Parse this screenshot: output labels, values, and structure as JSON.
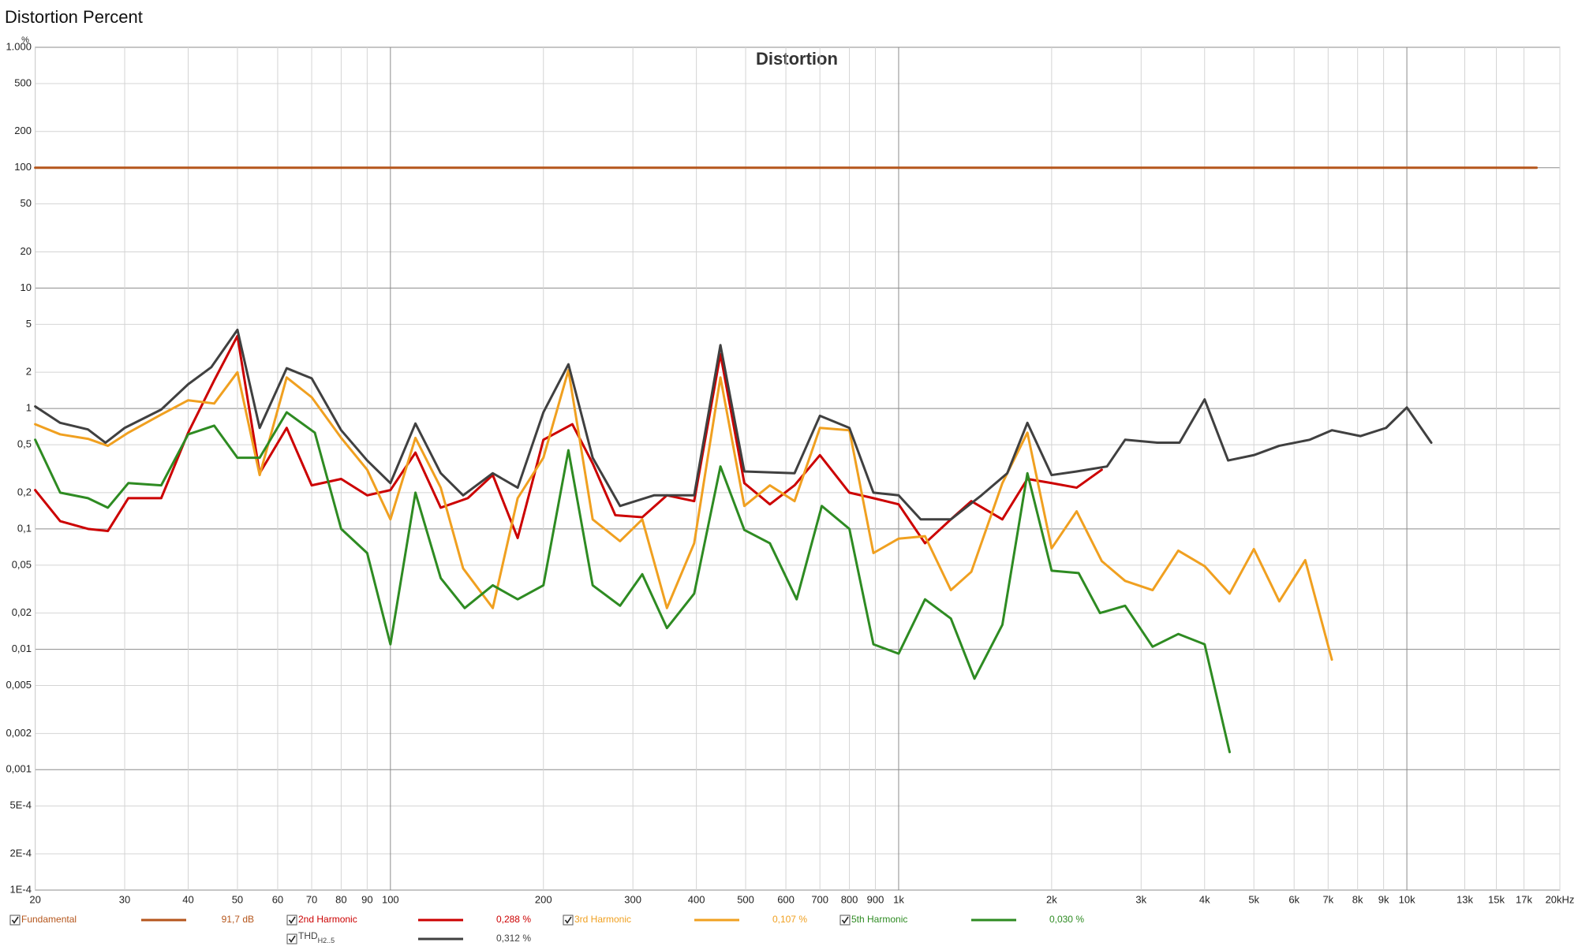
{
  "chart_data": {
    "type": "line",
    "window_title": "Distortion Percent",
    "title": "Distortion",
    "y_unit": "%",
    "log_x": true,
    "log_y": true,
    "grid": true,
    "xlim": [
      20,
      20000
    ],
    "ylim": [
      0.0001,
      1000
    ],
    "xticks": [
      20,
      30,
      40,
      50,
      60,
      70,
      80,
      90,
      100,
      200,
      300,
      400,
      500,
      600,
      700,
      800,
      900,
      {
        "value": 1000,
        "label": "1k"
      },
      {
        "value": 2000,
        "label": "2k"
      },
      {
        "value": 3000,
        "label": "3k"
      },
      {
        "value": 4000,
        "label": "4k"
      },
      {
        "value": 5000,
        "label": "5k"
      },
      {
        "value": 6000,
        "label": "6k"
      },
      {
        "value": 7000,
        "label": "7k"
      },
      {
        "value": 8000,
        "label": "8k"
      },
      {
        "value": 9000,
        "label": "9k"
      },
      {
        "value": 10000,
        "label": "10k"
      },
      {
        "value": 13000,
        "label": "13k"
      },
      {
        "value": 15000,
        "label": "15k"
      },
      {
        "value": 17000,
        "label": "17k"
      },
      {
        "value": 20000,
        "label": "20kHz"
      }
    ],
    "yticks": [
      {
        "value": 1000,
        "label": "1.000"
      },
      500,
      200,
      100,
      50,
      20,
      10,
      5,
      2,
      1,
      {
        "value": 0.5,
        "label": "0,5"
      },
      {
        "value": 0.2,
        "label": "0,2"
      },
      {
        "value": 0.1,
        "label": "0,1"
      },
      {
        "value": 0.05,
        "label": "0,05"
      },
      {
        "value": 0.02,
        "label": "0,02"
      },
      {
        "value": 0.01,
        "label": "0,01"
      },
      {
        "value": 0.005,
        "label": "0,005"
      },
      {
        "value": 0.002,
        "label": "0,002"
      },
      {
        "value": 0.001,
        "label": "0,001"
      },
      {
        "value": 0.0005,
        "label": "5E-4"
      },
      {
        "value": 0.0002,
        "label": "2E-4"
      },
      {
        "value": 0.0001,
        "label": "1E-4"
      }
    ],
    "series": [
      {
        "name": "Fundamental",
        "color": "#b5561c",
        "legend_value": "91,7 dB",
        "x": [
          20,
          18000
        ],
        "values": [
          100,
          100
        ]
      },
      {
        "name": "2nd Harmonic",
        "color": "#cc0000",
        "legend_value": "0,288 %",
        "x": [
          20,
          22.4,
          25.4,
          27.8,
          30.5,
          35.4,
          40,
          45,
          50,
          55.3,
          62.5,
          70,
          80,
          90,
          100,
          112,
          125.6,
          142,
          159,
          178,
          200,
          228,
          250,
          277,
          313,
          350,
          396,
          446,
          497,
          558,
          624,
          700,
          800,
          892,
          1000,
          1127,
          1267,
          1390,
          1600,
          1792,
          2000,
          2240,
          2510
        ],
        "values": [
          0.21,
          0.116,
          0.1,
          0.096,
          0.18,
          0.18,
          0.63,
          1.71,
          4.0,
          0.29,
          0.69,
          0.23,
          0.26,
          0.19,
          0.21,
          0.43,
          0.15,
          0.18,
          0.28,
          0.084,
          0.55,
          0.74,
          0.35,
          0.13,
          0.125,
          0.19,
          0.17,
          2.83,
          0.24,
          0.16,
          0.23,
          0.41,
          0.2,
          0.18,
          0.16,
          0.076,
          0.12,
          0.17,
          0.12,
          0.26,
          0.24,
          0.22,
          0.31
        ]
      },
      {
        "name": "3rd Harmonic",
        "color": "#f0a020",
        "legend_value": "0,107 %",
        "x": [
          20,
          22.4,
          25.4,
          27.8,
          30.5,
          35.4,
          40,
          45,
          50,
          55.3,
          62.5,
          70,
          80,
          90,
          100,
          112,
          125.6,
          139,
          159,
          178,
          200,
          224,
          250,
          283,
          313,
          350,
          396,
          446,
          497,
          558,
          624,
          700,
          800,
          892,
          1000,
          1127,
          1267,
          1390,
          1600,
          1792,
          2000,
          2240,
          2510,
          2790,
          3160,
          3550,
          4000,
          4480,
          5000,
          5610,
          6310,
          7120
        ],
        "values": [
          0.74,
          0.61,
          0.56,
          0.49,
          0.63,
          0.89,
          1.17,
          1.1,
          2.0,
          0.28,
          1.81,
          1.24,
          0.57,
          0.31,
          0.12,
          0.57,
          0.22,
          0.047,
          0.022,
          0.18,
          0.39,
          2.08,
          0.12,
          0.079,
          0.12,
          0.022,
          0.076,
          1.81,
          0.155,
          0.23,
          0.17,
          0.69,
          0.66,
          0.063,
          0.083,
          0.087,
          0.031,
          0.044,
          0.24,
          0.63,
          0.069,
          0.14,
          0.054,
          0.037,
          0.031,
          0.066,
          0.049,
          0.029,
          0.068,
          0.025,
          0.055,
          0.0082
        ]
      },
      {
        "name": "5th Harmonic",
        "color": "#2e8b22",
        "legend_value": "0,030 %",
        "x": [
          20,
          22.4,
          25.4,
          27.8,
          30.5,
          35.4,
          40,
          45,
          50,
          55.3,
          62.5,
          71,
          80,
          90,
          100,
          112,
          125.6,
          140,
          159,
          178,
          200,
          224,
          250,
          283,
          313,
          350,
          396,
          446,
          497,
          558,
          630,
          706,
          800,
          892,
          1000,
          1127,
          1267,
          1410,
          1600,
          1792,
          2000,
          2260,
          2490,
          2790,
          3160,
          3550,
          4000,
          4480
        ],
        "values": [
          0.55,
          0.2,
          0.18,
          0.15,
          0.24,
          0.23,
          0.61,
          0.72,
          0.39,
          0.39,
          0.93,
          0.63,
          0.1,
          0.063,
          0.011,
          0.2,
          0.039,
          0.022,
          0.034,
          0.026,
          0.034,
          0.45,
          0.034,
          0.023,
          0.042,
          0.015,
          0.029,
          0.33,
          0.098,
          0.076,
          0.026,
          0.155,
          0.1,
          0.011,
          0.0092,
          0.026,
          0.018,
          0.0057,
          0.016,
          0.29,
          0.045,
          0.043,
          0.02,
          0.023,
          0.0105,
          0.0134,
          0.011,
          0.0014
        ]
      },
      {
        "name": "THD",
        "name_subscript": "H2..5",
        "color": "#404040",
        "legend_value": "0,312 %",
        "x": [
          20,
          22.4,
          25.4,
          27.5,
          30,
          35.4,
          40,
          44.4,
          50,
          55.3,
          62.5,
          70,
          80,
          90,
          100,
          112,
          125.6,
          139,
          159,
          178,
          200,
          224,
          250,
          283,
          330,
          396,
          446,
          497,
          624,
          700,
          800,
          892,
          1000,
          1105,
          1267,
          1455,
          1636,
          1792,
          2000,
          2240,
          2570,
          2790,
          3230,
          3570,
          4000,
          4450,
          5000,
          5610,
          6440,
          7120,
          8100,
          9100,
          10000,
          11170
        ],
        "values": [
          1.04,
          0.76,
          0.67,
          0.52,
          0.69,
          0.98,
          1.59,
          2.2,
          4.5,
          0.69,
          2.16,
          1.78,
          0.66,
          0.37,
          0.24,
          0.75,
          0.29,
          0.19,
          0.29,
          0.22,
          0.93,
          2.33,
          0.39,
          0.155,
          0.19,
          0.19,
          3.36,
          0.3,
          0.29,
          0.87,
          0.69,
          0.2,
          0.19,
          0.12,
          0.12,
          0.19,
          0.29,
          0.76,
          0.28,
          0.3,
          0.33,
          0.55,
          0.52,
          0.52,
          1.19,
          0.37,
          0.41,
          0.49,
          0.55,
          0.66,
          0.59,
          0.69,
          1.02,
          0.52
        ]
      }
    ]
  }
}
